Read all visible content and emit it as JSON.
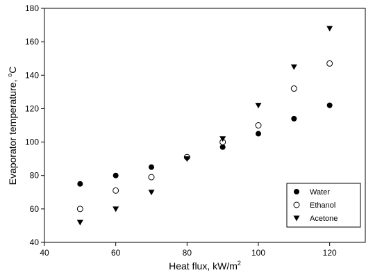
{
  "chart_data": {
    "type": "scatter",
    "title": "",
    "xlabel": "Heat flux, kW/m",
    "xlabel_sup": "2",
    "ylabel_prefix": "Evaporator temperature, ",
    "ylabel_sup": "o",
    "ylabel_suffix": "C",
    "xlim": [
      40,
      130
    ],
    "ylim": [
      40,
      180
    ],
    "x_ticks": [
      40,
      60,
      80,
      100,
      120
    ],
    "y_ticks": [
      40,
      60,
      80,
      100,
      120,
      140,
      160,
      180
    ],
    "grid": false,
    "legend_position": "bottom-right",
    "series": [
      {
        "name": "Water",
        "marker": "filled-circle",
        "color": "#000000",
        "points": [
          [
            50,
            75
          ],
          [
            60,
            80
          ],
          [
            70,
            85
          ],
          [
            80,
            91
          ],
          [
            90,
            97
          ],
          [
            100,
            105
          ],
          [
            110,
            114
          ],
          [
            120,
            122
          ]
        ]
      },
      {
        "name": "Ethanol",
        "marker": "open-circle",
        "color": "#000000",
        "points": [
          [
            50,
            60
          ],
          [
            60,
            71
          ],
          [
            70,
            79
          ],
          [
            80,
            91
          ],
          [
            90,
            100
          ],
          [
            100,
            110
          ],
          [
            110,
            132
          ],
          [
            120,
            147
          ]
        ]
      },
      {
        "name": "Acetone",
        "marker": "filled-triangle-down",
        "color": "#000000",
        "points": [
          [
            50,
            52
          ],
          [
            60,
            60
          ],
          [
            70,
            70
          ],
          [
            80,
            90
          ],
          [
            90,
            102
          ],
          [
            100,
            122
          ],
          [
            110,
            145
          ],
          [
            120,
            168
          ]
        ]
      }
    ]
  }
}
